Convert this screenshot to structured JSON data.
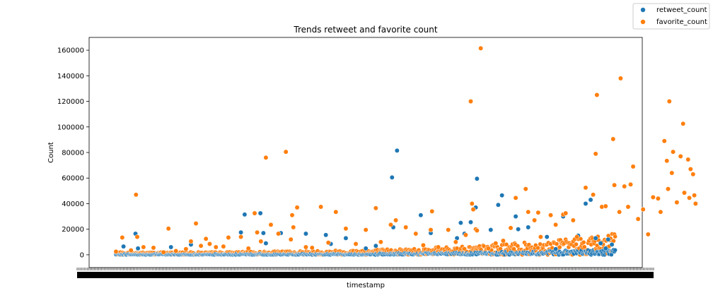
{
  "chart_data": {
    "type": "scatter",
    "title": "Trends retweet and favorite count",
    "xlabel": "timestamp",
    "ylabel": "Count",
    "x_categories_count": 2000,
    "ylim": [
      -10000,
      170000
    ],
    "yticks": [
      0,
      20000,
      40000,
      60000,
      80000,
      100000,
      120000,
      140000,
      160000
    ],
    "ytick_labels": [
      "0",
      "20000",
      "40000",
      "60000",
      "80000",
      "100000",
      "120000",
      "140000",
      "160000"
    ],
    "grid": false,
    "legend": {
      "placement": "top-right",
      "entries": [
        {
          "label": "retweet_count",
          "color": "#1f77b4"
        },
        {
          "label": "favorite_count",
          "color": "#ff7f0e"
        }
      ]
    },
    "series": [
      {
        "name": "retweet_count",
        "color": "#1f77b4",
        "points": [
          [
            30,
            6500
          ],
          [
            78,
            16500
          ],
          [
            88,
            5000
          ],
          [
            220,
            6000
          ],
          [
            300,
            8000
          ],
          [
            500,
            17500
          ],
          [
            515,
            31500
          ],
          [
            578,
            32500
          ],
          [
            590,
            17000
          ],
          [
            600,
            9000
          ],
          [
            660,
            17000
          ],
          [
            760,
            16500
          ],
          [
            840,
            15500
          ],
          [
            860,
            8500
          ],
          [
            920,
            13000
          ],
          [
            1000,
            5000
          ],
          [
            1040,
            7000
          ],
          [
            1105,
            60500
          ],
          [
            1110,
            21500
          ],
          [
            1125,
            81500
          ],
          [
            1220,
            31000
          ],
          [
            1260,
            17000
          ],
          [
            1365,
            13000
          ],
          [
            1380,
            25000
          ],
          [
            1395,
            16500
          ],
          [
            1420,
            25500
          ],
          [
            1440,
            37000
          ],
          [
            1445,
            59500
          ],
          [
            1500,
            19500
          ],
          [
            1530,
            39000
          ],
          [
            1545,
            46500
          ],
          [
            1600,
            30000
          ],
          [
            1610,
            20000
          ],
          [
            1650,
            21500
          ],
          [
            1725,
            14000
          ],
          [
            1760,
            4500
          ],
          [
            1790,
            30000
          ],
          [
            1850,
            15000
          ],
          [
            1880,
            40000
          ],
          [
            1900,
            43000
          ],
          [
            1920,
            13000
          ],
          [
            1940,
            9000
          ],
          [
            1960,
            5000
          ],
          [
            1970,
            12000
          ],
          [
            1985,
            8000
          ]
        ]
      },
      {
        "name": "favorite_count",
        "color": "#ff7f0e",
        "points": [
          [
            0,
            2500
          ],
          [
            25,
            13500
          ],
          [
            60,
            3500
          ],
          [
            80,
            47000
          ],
          [
            85,
            14000
          ],
          [
            110,
            6000
          ],
          [
            150,
            5500
          ],
          [
            190,
            2000
          ],
          [
            210,
            20500
          ],
          [
            240,
            3000
          ],
          [
            280,
            4500
          ],
          [
            300,
            10500
          ],
          [
            320,
            24500
          ],
          [
            340,
            7000
          ],
          [
            360,
            12500
          ],
          [
            375,
            8500
          ],
          [
            400,
            6000
          ],
          [
            430,
            6500
          ],
          [
            450,
            13500
          ],
          [
            500,
            14000
          ],
          [
            530,
            5000
          ],
          [
            555,
            32500
          ],
          [
            565,
            17500
          ],
          [
            580,
            10500
          ],
          [
            600,
            76000
          ],
          [
            620,
            23500
          ],
          [
            650,
            16500
          ],
          [
            680,
            80500
          ],
          [
            700,
            12000
          ],
          [
            705,
            31000
          ],
          [
            710,
            21500
          ],
          [
            725,
            37000
          ],
          [
            760,
            6000
          ],
          [
            785,
            5500
          ],
          [
            820,
            37500
          ],
          [
            850,
            9500
          ],
          [
            880,
            33500
          ],
          [
            920,
            20500
          ],
          [
            960,
            8500
          ],
          [
            1000,
            19500
          ],
          [
            1040,
            36500
          ],
          [
            1060,
            10000
          ],
          [
            1100,
            23500
          ],
          [
            1120,
            27000
          ],
          [
            1160,
            21500
          ],
          [
            1200,
            16500
          ],
          [
            1230,
            7500
          ],
          [
            1260,
            19500
          ],
          [
            1265,
            34000
          ],
          [
            1290,
            6000
          ],
          [
            1330,
            19500
          ],
          [
            1360,
            10000
          ],
          [
            1400,
            15500
          ],
          [
            1420,
            120000
          ],
          [
            1425,
            40000
          ],
          [
            1430,
            35500
          ],
          [
            1440,
            20000
          ],
          [
            1445,
            19000
          ],
          [
            1460,
            161500
          ],
          [
            1490,
            5000
          ],
          [
            1520,
            9000
          ],
          [
            1550,
            11000
          ],
          [
            1580,
            21000
          ],
          [
            1600,
            44500
          ],
          [
            1640,
            51500
          ],
          [
            1650,
            33500
          ],
          [
            1675,
            27000
          ],
          [
            1690,
            33000
          ],
          [
            1700,
            14000
          ],
          [
            1740,
            31000
          ],
          [
            1760,
            23500
          ],
          [
            1790,
            31500
          ],
          [
            1800,
            32500
          ],
          [
            1830,
            27000
          ],
          [
            1845,
            14000
          ],
          [
            1880,
            52500
          ],
          [
            1910,
            47000
          ],
          [
            1920,
            79000
          ],
          [
            1925,
            125000
          ],
          [
            1945,
            37500
          ],
          [
            1960,
            38000
          ],
          [
            1990,
            90500
          ],
          [
            1995,
            54500
          ],
          [
            2015,
            33500
          ],
          [
            2020,
            138000
          ],
          [
            2035,
            53500
          ],
          [
            2050,
            37500
          ],
          [
            2060,
            55000
          ],
          [
            2070,
            69000
          ],
          [
            2090,
            28000
          ],
          [
            2110,
            35500
          ],
          [
            2130,
            16000
          ],
          [
            2150,
            45000
          ],
          [
            2170,
            44000
          ],
          [
            2180,
            33500
          ],
          [
            2195,
            89000
          ],
          [
            2205,
            73500
          ],
          [
            2210,
            51500
          ],
          [
            2215,
            120000
          ],
          [
            2225,
            64000
          ],
          [
            2230,
            80500
          ],
          [
            2245,
            41000
          ],
          [
            2260,
            77000
          ],
          [
            2270,
            102500
          ],
          [
            2275,
            48500
          ],
          [
            2290,
            74500
          ],
          [
            2295,
            44500
          ],
          [
            2300,
            67000
          ],
          [
            2310,
            63000
          ],
          [
            2315,
            46500
          ],
          [
            2320,
            40000
          ]
        ]
      }
    ]
  }
}
